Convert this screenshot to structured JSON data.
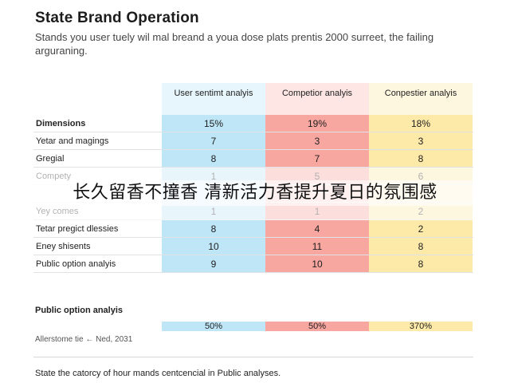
{
  "header": {
    "title": "State Brand Operation",
    "subtitle": "Stands you user tuely wil mal breand a youa dose plats prentis 2000 surreet, the failing arguraning."
  },
  "table": {
    "columns": [
      "User sentimt analyis",
      "Competior analyis",
      "Conpestier analyis"
    ],
    "rows": [
      {
        "label": "Dimensions",
        "values": [
          "15%",
          "19%",
          "18%"
        ],
        "bold": true
      },
      {
        "label": "Yetar and magings",
        "values": [
          "7",
          "3",
          "3"
        ]
      },
      {
        "label": "Gregial",
        "values": [
          "8",
          "7",
          "8"
        ]
      },
      {
        "label": "Compety",
        "values": [
          "1",
          "5",
          "6"
        ],
        "faded": true
      },
      {
        "label": "",
        "values": [
          "",
          "",
          ""
        ],
        "faded": true
      },
      {
        "label": "Yey comes",
        "values": [
          "1",
          "1",
          "2"
        ],
        "faded": true
      },
      {
        "label": "Tetar pregict dlessies",
        "values": [
          "8",
          "4",
          "2"
        ]
      },
      {
        "label": "Eney shisents",
        "values": [
          "10",
          "11",
          "8"
        ]
      },
      {
        "label": "Public option analyis",
        "values": [
          "9",
          "10",
          "8"
        ]
      }
    ]
  },
  "overlay_text": "长久留香不撞香 清新活力香提升夏日的氛围感",
  "summary": {
    "title": "Public option analyis",
    "values": [
      "50%",
      "50%",
      "370%"
    ],
    "date_note": "Allerstome tie ← Ned, 2031"
  },
  "footer": {
    "text": "State the catorcy of hour mands centcencial in Public analyses."
  },
  "colors": {
    "col1": "#bfe6f7",
    "col2": "#f8a6a0",
    "col3": "#fde9a8"
  }
}
